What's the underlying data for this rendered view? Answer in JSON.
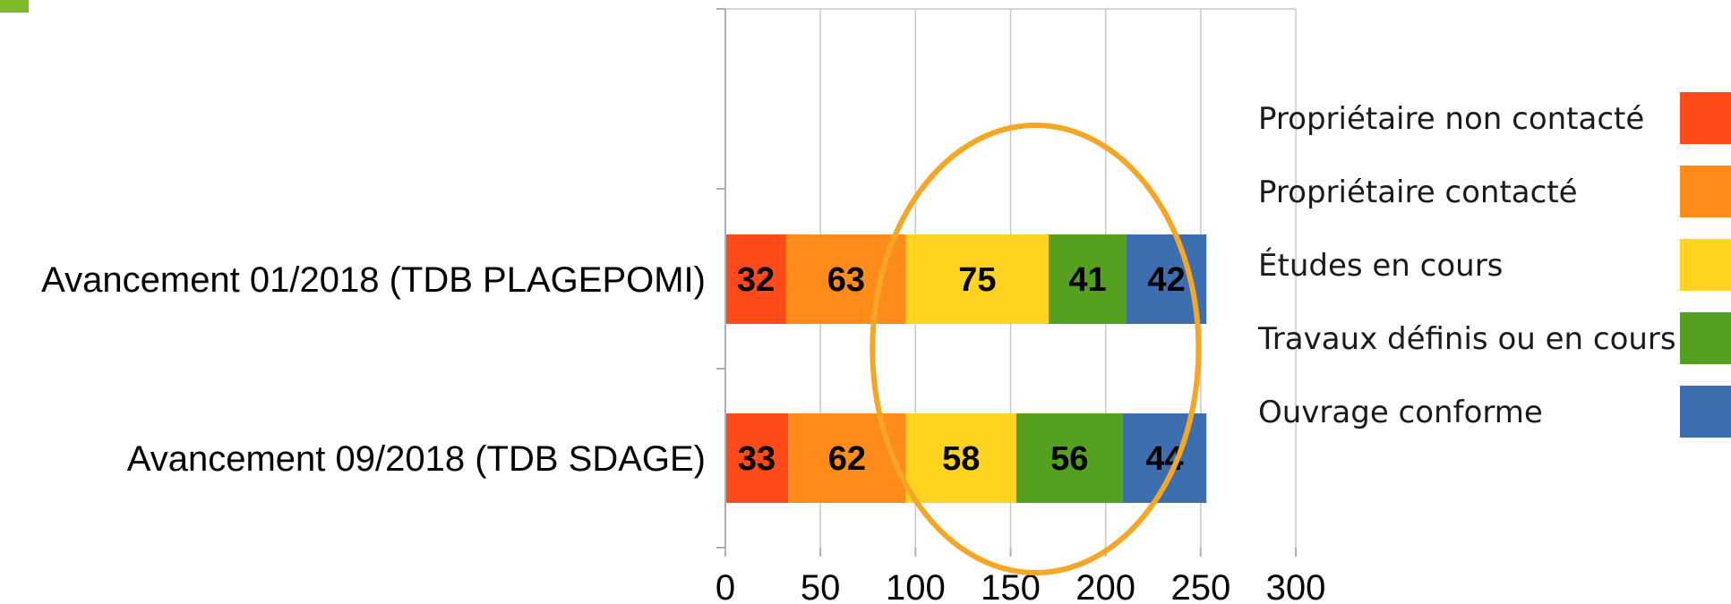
{
  "chart_data": {
    "type": "bar",
    "orientation": "horizontal",
    "stacked": true,
    "categories": [
      "Avancement 01/2018 (TDB PLAGEPOMI)",
      "Avancement 09/2018 (TDB SDAGE)"
    ],
    "series": [
      {
        "name": "Propriétaire non contacté",
        "values": [
          32,
          33
        ],
        "color": "#ff4a1a"
      },
      {
        "name": "Propriétaire contacté",
        "values": [
          63,
          62
        ],
        "color": "#ff8c1a"
      },
      {
        "name": "Études en cours",
        "values": [
          75,
          58
        ],
        "color": "#ffd31f"
      },
      {
        "name": "Travaux définis ou en cours",
        "values": [
          41,
          56
        ],
        "color": "#56a020"
      },
      {
        "name": "Ouvrage conforme",
        "values": [
          42,
          44
        ],
        "color": "#3d6fb0"
      }
    ],
    "xlim": [
      0,
      300
    ],
    "xticks": [
      0,
      50,
      100,
      150,
      200,
      250,
      300
    ],
    "xticklabels": [
      "0",
      "50",
      "100",
      "150",
      "200",
      "250",
      "300"
    ],
    "grid": "vertical",
    "legend": "right",
    "title": "",
    "xlabel": "",
    "ylabel": "",
    "annotation": {
      "shape": "ellipse",
      "color": "#f5a623",
      "around_x": [
        100,
        230
      ]
    }
  }
}
